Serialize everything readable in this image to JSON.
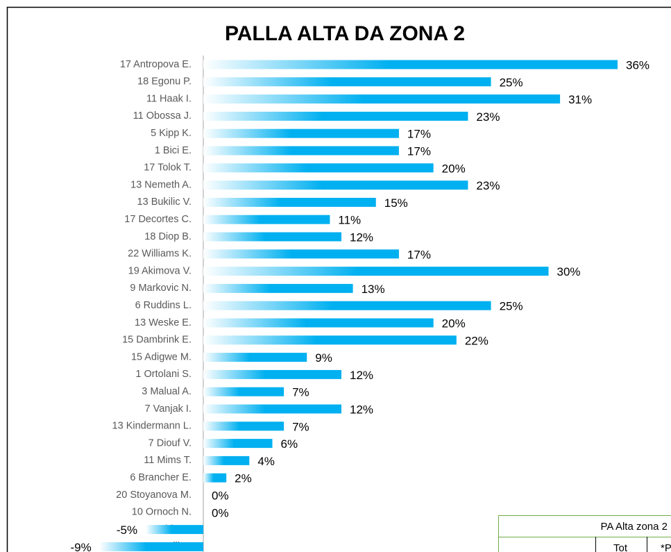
{
  "chart_data": {
    "type": "bar",
    "orientation": "horizontal",
    "title": "PALLA ALTA DA ZONA 2",
    "categories": [
      "17 Antropova E.",
      "18 Egonu P.",
      "11 Haak I.",
      "11 Obossa J.",
      "5 Kipp K.",
      "1 Bici E.",
      "17 Tolok T.",
      "13 Nemeth A.",
      "13 Bukilic V.",
      "17 Decortes C.",
      "18 Diop B.",
      "22 Williams K.",
      "19 Akimova V.",
      "9 Markovic N.",
      "6 Ruddins L.",
      "13 Weske E.",
      "15 Dambrink E.",
      "15 Adigwe M.",
      "1 Ortolani S.",
      "3 Malual A.",
      "7 Vanjak I.",
      "13 Kindermann L.",
      "7 Diouf V.",
      "11 Mims T.",
      "6 Brancher E.",
      "20 Stoyanova M.",
      "10 Ornoch N.",
      "Harbin D.",
      "7 Zuccarelli A."
    ],
    "values": [
      36,
      25,
      31,
      23,
      17,
      17,
      20,
      23,
      15,
      11,
      12,
      17,
      30,
      13,
      25,
      20,
      22,
      9,
      12,
      7,
      12,
      7,
      6,
      4,
      2,
      0,
      0,
      -5,
      -9
    ],
    "value_labels": [
      "36%",
      "25%",
      "31%",
      "23%",
      "17%",
      "17%",
      "20%",
      "23%",
      "15%",
      "11%",
      "12%",
      "17%",
      "30%",
      "13%",
      "25%",
      "20%",
      "22%",
      "9%",
      "12%",
      "7%",
      "12%",
      "7%",
      "6%",
      "4%",
      "2%",
      "0%",
      "0%",
      "-5%",
      "-9%"
    ],
    "color": "#00b0f0"
  },
  "table": {
    "title": "PA Alta zona 2",
    "headers": [
      "Tot",
      "*P"
    ]
  }
}
